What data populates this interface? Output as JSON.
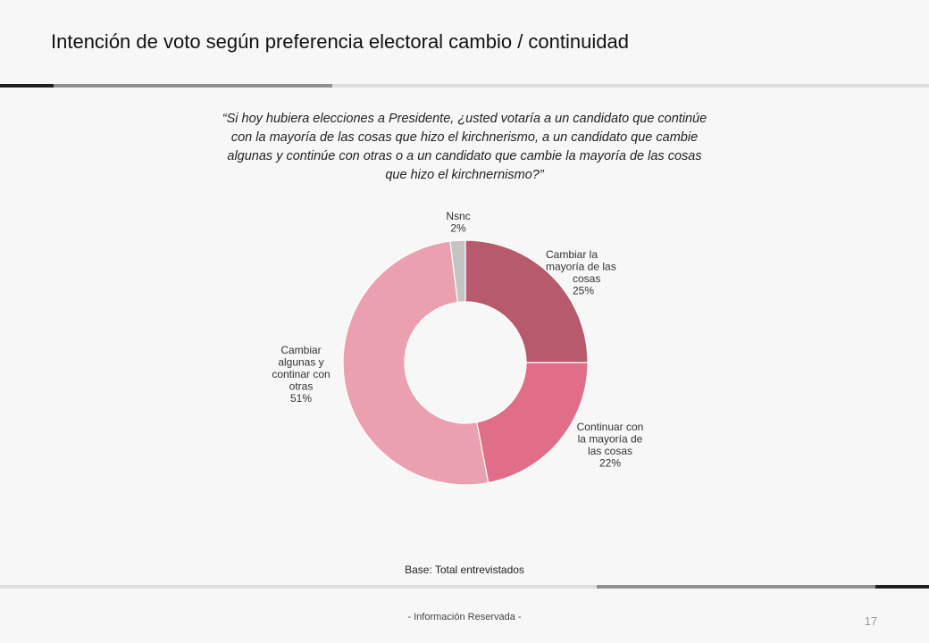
{
  "header": {
    "title": "Intención de voto según preferencia electoral cambio / continuidad"
  },
  "question": {
    "lines": [
      "“Si hoy hubiera elecciones a Presidente, ¿usted votaría a un candidato que continúe",
      "con la mayoría de las cosas que hizo el kirchnerismo, a un candidato que cambie",
      "algunas y continúe con otras o a un candidato que cambie la mayoría  de las cosas",
      "que hizo el kirchnernismo?”"
    ]
  },
  "chart_data": {
    "type": "pie",
    "donut": true,
    "slices": [
      {
        "label_lines": [
          "Cambiar la",
          "mayoría de las",
          "cosas"
        ],
        "value": 25,
        "value_label": "25%",
        "color": "#b85a6d"
      },
      {
        "label_lines": [
          "Continuar con",
          "la mayoría de",
          "las cosas"
        ],
        "value": 22,
        "value_label": "22%",
        "color": "#e06e89"
      },
      {
        "label_lines": [
          "Cambiar",
          "algunas y",
          "continar con",
          "otras"
        ],
        "value": 51,
        "value_label": "51%",
        "color": "#eba0b0"
      },
      {
        "label_lines": [
          "Nsnc"
        ],
        "value": 2,
        "value_label": "2%",
        "color": "#c4c4c4"
      }
    ]
  },
  "base": "Base: Total entrevistados",
  "footer": {
    "text": "- Información Reservada -",
    "page": "17"
  }
}
